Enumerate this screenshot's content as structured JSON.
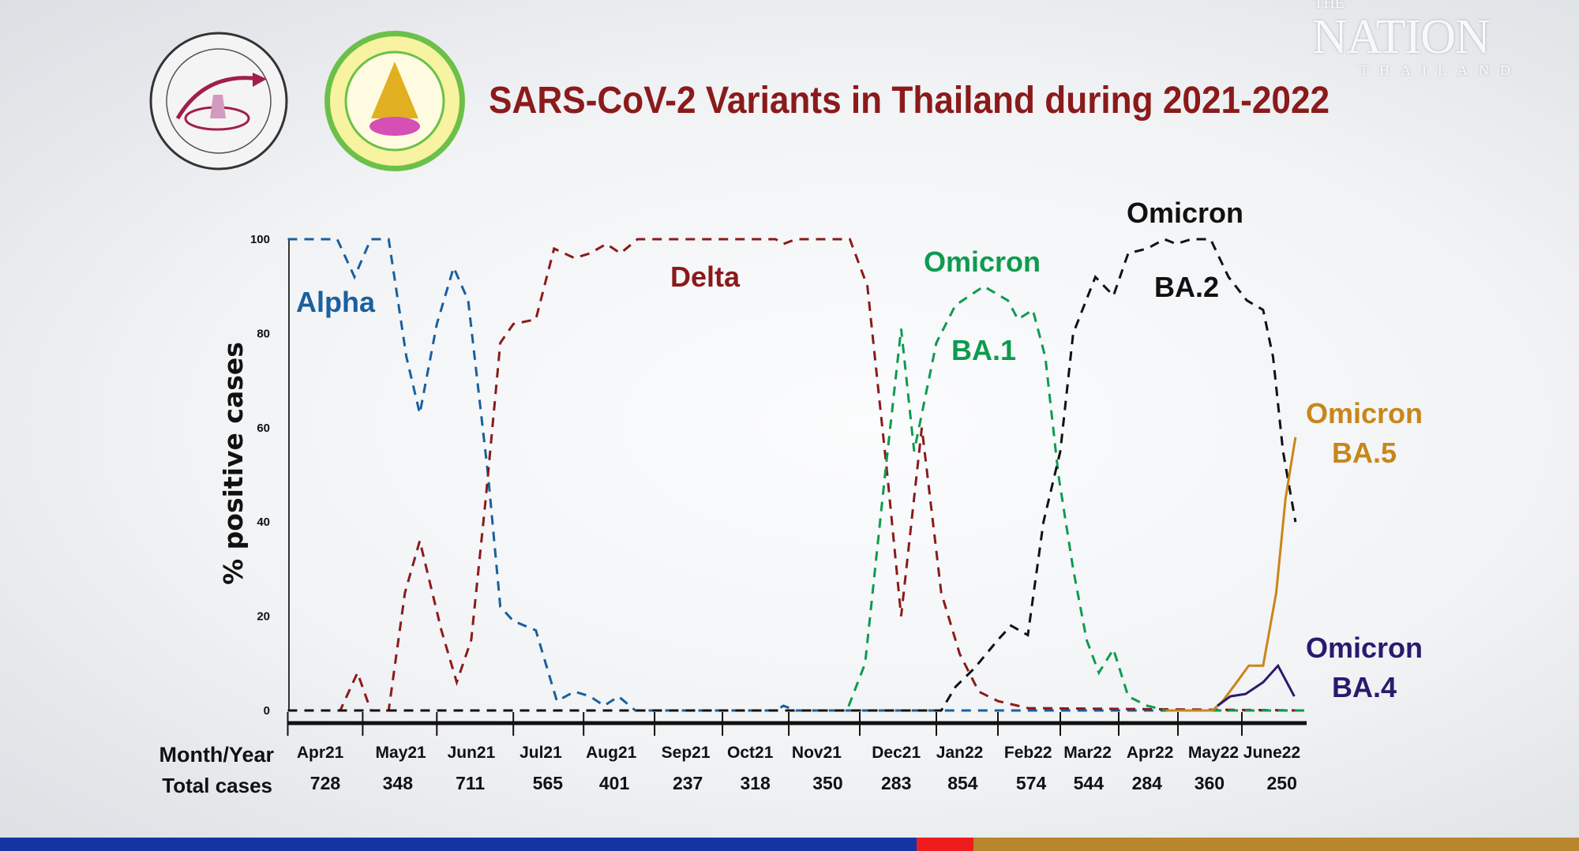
{
  "title": "SARS-CoV-2 Variants in Thailand during 2021-2022",
  "watermark": {
    "the": "THE",
    "nation": "NATION",
    "thailand": "THAILAND"
  },
  "logos": [
    "center-of-excellence-clinical-virology-logo",
    "faculty-of-medicine-chulalongkorn-university-logo"
  ],
  "stripe_colors": {
    "blue": "#1434a4",
    "red": "#ee1c1c",
    "gold": "#b8862c"
  },
  "chart_data": {
    "type": "line",
    "title": "SARS-CoV-2 Variants in Thailand during 2021-2022",
    "ylabel": "% positive cases",
    "ylim": [
      0,
      100
    ],
    "yticks": [
      "0",
      "20",
      "40",
      "60",
      "80",
      "100"
    ],
    "grid": false,
    "row_labels": {
      "month": "Month/Year",
      "total": "Total cases"
    },
    "categories": [
      "Apr21",
      "May21",
      "Jun21",
      "Jul21",
      "Aug21",
      "Sep21",
      "Oct21",
      "Nov21",
      "Dec21",
      "Jan22",
      "Feb22",
      "Mar22",
      "Apr22",
      "May22",
      "June22"
    ],
    "total_cases": [
      "728",
      "348",
      "711",
      "565",
      "401",
      "237",
      "318",
      "350",
      "283",
      "854",
      "574",
      "544",
      "284",
      "360",
      "250"
    ],
    "series": [
      {
        "name": "Alpha",
        "label_lines": [
          "Alpha"
        ],
        "color": "#1a5f9e",
        "style": "dashed",
        "points": [
          [
            0,
            100
          ],
          [
            0.66,
            100
          ],
          [
            0.89,
            92
          ],
          [
            1.11,
            100
          ],
          [
            1.35,
            100
          ],
          [
            1.59,
            75
          ],
          [
            1.77,
            63
          ],
          [
            2.0,
            82
          ],
          [
            2.22,
            94
          ],
          [
            2.41,
            87
          ],
          [
            2.67,
            50
          ],
          [
            2.83,
            22
          ],
          [
            3.0,
            19
          ],
          [
            3.32,
            17
          ],
          [
            3.62,
            2
          ],
          [
            3.87,
            4
          ],
          [
            4.09,
            3
          ],
          [
            4.29,
            1
          ],
          [
            4.49,
            3
          ],
          [
            4.73,
            0
          ],
          [
            6.8,
            0
          ],
          [
            6.92,
            1
          ],
          [
            7.1,
            0
          ],
          [
            15,
            0
          ]
        ]
      },
      {
        "name": "Delta",
        "label_lines": [
          "Delta"
        ],
        "color": "#8b1a1a",
        "style": "dashed",
        "points": [
          [
            0,
            0
          ],
          [
            0.7,
            0
          ],
          [
            0.93,
            8
          ],
          [
            1.11,
            0
          ],
          [
            1.35,
            0
          ],
          [
            1.57,
            25
          ],
          [
            1.77,
            36
          ],
          [
            2.06,
            17
          ],
          [
            2.26,
            6
          ],
          [
            2.45,
            15
          ],
          [
            2.64,
            45
          ],
          [
            2.83,
            78
          ],
          [
            3.0,
            82
          ],
          [
            3.32,
            83
          ],
          [
            3.58,
            98
          ],
          [
            3.87,
            96
          ],
          [
            4.09,
            97
          ],
          [
            4.32,
            99
          ],
          [
            4.52,
            97
          ],
          [
            4.76,
            100
          ],
          [
            6.8,
            100
          ],
          [
            6.92,
            99
          ],
          [
            7.1,
            100
          ],
          [
            7.86,
            100
          ],
          [
            8.1,
            90
          ],
          [
            8.36,
            50
          ],
          [
            8.54,
            20
          ],
          [
            8.81,
            60
          ],
          [
            9.08,
            25
          ],
          [
            9.38,
            12
          ],
          [
            9.69,
            4
          ],
          [
            10.0,
            2
          ],
          [
            10.48,
            0.5
          ],
          [
            15,
            0
          ]
        ]
      },
      {
        "name": "Omicron BA.1",
        "label_lines": [
          "Omicron",
          "BA.1"
        ],
        "color": "#0e9b4e",
        "style": "dashed",
        "points": [
          [
            0,
            0
          ],
          [
            7.82,
            0
          ],
          [
            8.07,
            10
          ],
          [
            8.33,
            50
          ],
          [
            8.54,
            81
          ],
          [
            8.71,
            55
          ],
          [
            9.0,
            78
          ],
          [
            9.31,
            86
          ],
          [
            9.77,
            90
          ],
          [
            10.16,
            87
          ],
          [
            10.32,
            83
          ],
          [
            10.56,
            85
          ],
          [
            10.76,
            75
          ],
          [
            10.97,
            50
          ],
          [
            11.22,
            30
          ],
          [
            11.45,
            15
          ],
          [
            11.66,
            8
          ],
          [
            11.91,
            13
          ],
          [
            12.16,
            3
          ],
          [
            12.48,
            1
          ],
          [
            12.81,
            0
          ],
          [
            15,
            0
          ]
        ]
      },
      {
        "name": "Omicron BA.2",
        "label_lines": [
          "Omicron",
          "BA.2"
        ],
        "color": "#111111",
        "style": "dashed",
        "points": [
          [
            0,
            0
          ],
          [
            9.08,
            0
          ],
          [
            9.31,
            5
          ],
          [
            9.62,
            9
          ],
          [
            10.0,
            15
          ],
          [
            10.21,
            18
          ],
          [
            10.48,
            16
          ],
          [
            10.73,
            40
          ],
          [
            11.0,
            55
          ],
          [
            11.22,
            80
          ],
          [
            11.6,
            92
          ],
          [
            11.91,
            88
          ],
          [
            12.16,
            97
          ],
          [
            12.48,
            98
          ],
          [
            12.77,
            100
          ],
          [
            12.97,
            99
          ],
          [
            13.21,
            100
          ],
          [
            13.51,
            100
          ],
          [
            13.79,
            92
          ],
          [
            14.08,
            87
          ],
          [
            14.34,
            85
          ],
          [
            14.5,
            75
          ],
          [
            14.66,
            55
          ],
          [
            14.86,
            40
          ]
        ]
      },
      {
        "name": "Omicron BA.5",
        "label_lines": [
          "Omicron",
          "BA.5"
        ],
        "color": "#c8861a",
        "style": "solid",
        "points": [
          [
            12.8,
            0
          ],
          [
            13.54,
            0
          ],
          [
            13.7,
            2
          ],
          [
            13.92,
            6
          ],
          [
            14.11,
            9.5
          ],
          [
            14.34,
            9.5
          ],
          [
            14.55,
            25
          ],
          [
            14.7,
            45
          ],
          [
            14.86,
            58
          ]
        ]
      },
      {
        "name": "Omicron BA.4",
        "label_lines": [
          "Omicron",
          "BA.4"
        ],
        "color": "#2a1a6e",
        "style": "solid",
        "points": [
          [
            13.62,
            1
          ],
          [
            13.82,
            3
          ],
          [
            14.06,
            3.5
          ],
          [
            14.34,
            6
          ],
          [
            14.58,
            9.5
          ],
          [
            14.84,
            3
          ]
        ]
      }
    ]
  }
}
